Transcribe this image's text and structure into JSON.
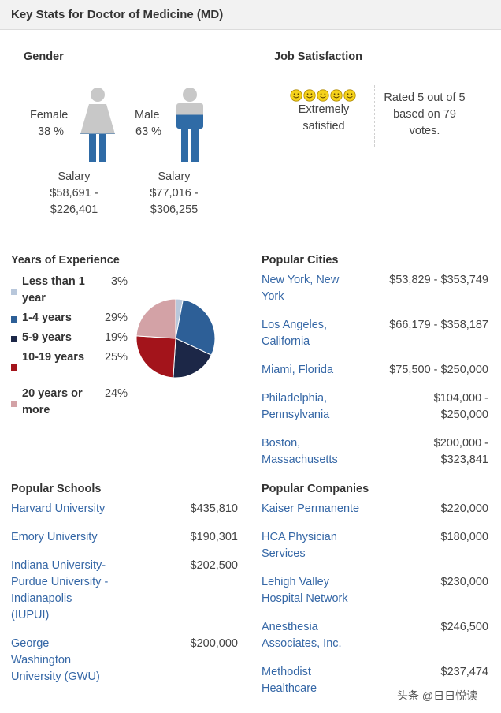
{
  "header": {
    "title": "Key Stats for Doctor of Medicine (MD)"
  },
  "gender": {
    "title": "Gender",
    "female": {
      "label": "Female",
      "percent": "38 %",
      "salary_label": "Salary",
      "salary_min": "$58,691 -",
      "salary_max": "$226,401",
      "fill_fraction": 0.38
    },
    "male": {
      "label": "Male",
      "percent": "63 %",
      "salary_label": "Salary",
      "salary_min": "$77,016 -",
      "salary_max": "$306,255",
      "fill_fraction": 0.63
    },
    "colors": {
      "fill": "#2f6ba6",
      "empty": "#c8c8c8"
    }
  },
  "job_satisfaction": {
    "title": "Job Satisfaction",
    "smiley_count": 5,
    "rating_text_line1": "Extremely",
    "rating_text_line2": "satisfied",
    "rated_line1": "Rated 5 out of 5",
    "rated_line2": "based on 79",
    "rated_line3": "votes."
  },
  "experience": {
    "title": "Years of Experience",
    "items": [
      {
        "label": "Less than 1 year",
        "percent": "3%",
        "value": 3,
        "color": "#b8c7db"
      },
      {
        "label": "1-4 years",
        "percent": "29%",
        "value": 29,
        "color": "#2d5f97"
      },
      {
        "label": "5-9 years",
        "percent": "19%",
        "value": 19,
        "color": "#1c2747"
      },
      {
        "label": "10-19 years",
        "percent": "25%",
        "value": 25,
        "color": "#a3141b"
      },
      {
        "label": "20 years or more",
        "percent": "24%",
        "value": 24,
        "color": "#d3a2a6"
      }
    ]
  },
  "cities": {
    "title": "Popular Cities",
    "items": [
      {
        "name": "New York, New York",
        "line1": "New York, New",
        "line2": "York",
        "salary": "$53,829 - $353,749"
      },
      {
        "name": "Los Angeles, California",
        "line1": "Los Angeles,",
        "line2": "California",
        "salary": "$66,179 - $358,187"
      },
      {
        "name": "Miami, Florida",
        "line1": "Miami, Florida",
        "line2": "",
        "salary": "$75,500 - $250,000"
      },
      {
        "name": "Philadelphia, Pennsylvania",
        "line1": "Philadelphia,",
        "line2": "Pennsylvania",
        "salary_l1": "$104,000 -",
        "salary_l2": "$250,000"
      },
      {
        "name": "Boston, Massachusetts",
        "line1": "Boston,",
        "line2": "Massachusetts",
        "salary_l1": "$200,000 -",
        "salary_l2": "$323,841"
      }
    ]
  },
  "schools": {
    "title": "Popular Schools",
    "items": [
      {
        "lines": [
          "Harvard University"
        ],
        "salary": "$435,810"
      },
      {
        "lines": [
          "Emory University"
        ],
        "salary": "$190,301"
      },
      {
        "lines": [
          "Indiana University-",
          "Purdue University -",
          "Indianapolis",
          "(IUPUI)"
        ],
        "salary": "$202,500"
      },
      {
        "lines": [
          "George",
          "Washington",
          "University (GWU)"
        ],
        "salary": "$200,000"
      }
    ]
  },
  "companies": {
    "title": "Popular Companies",
    "items": [
      {
        "lines": [
          "Kaiser Permanente"
        ],
        "salary": "$220,000"
      },
      {
        "lines": [
          "HCA Physician",
          "Services"
        ],
        "salary": "$180,000"
      },
      {
        "lines": [
          "Lehigh Valley",
          "Hospital Network"
        ],
        "salary": "$230,000"
      },
      {
        "lines": [
          "Anesthesia",
          "Associates, Inc."
        ],
        "salary": "$246,500"
      },
      {
        "lines": [
          "Methodist",
          "Healthcare"
        ],
        "salary": "$237,474"
      }
    ]
  },
  "watermark": "头条 @日日悦读"
}
